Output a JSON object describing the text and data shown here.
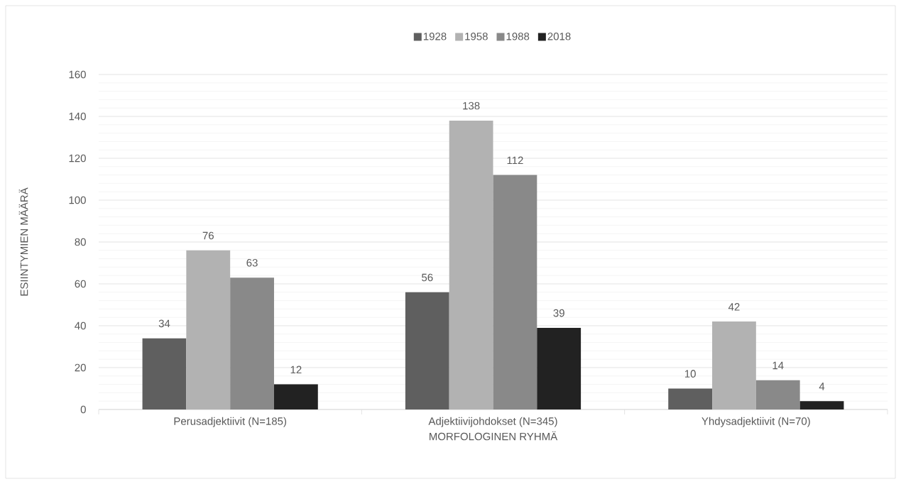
{
  "chart_data": {
    "type": "bar",
    "xlabel": "MORFOLOGINEN RYHMÄ",
    "ylabel": "ESIINTYMIEN MÄÄRÄ",
    "categories": [
      "Perusadjektiivit (N=185)",
      "Adjektiivijohdokset (N=345)",
      "Yhdysadjektiivit (N=70)"
    ],
    "series": [
      {
        "name": "1928",
        "color": "#5f5f5f",
        "values": [
          34,
          56,
          10
        ]
      },
      {
        "name": "1958",
        "color": "#b2b2b2",
        "values": [
          76,
          138,
          42
        ]
      },
      {
        "name": "1988",
        "color": "#898989",
        "values": [
          63,
          112,
          14
        ]
      },
      {
        "name": "2018",
        "color": "#222222",
        "values": [
          12,
          39,
          4
        ]
      }
    ],
    "ylim": [
      0,
      160
    ],
    "yticks": [
      0,
      {
        "value": 4,
        "label": null
      },
      {
        "value": 8,
        "label": null
      },
      {
        "value": 12,
        "label": null
      },
      {
        "value": 16,
        "label": null
      },
      20,
      {
        "value": 24,
        "label": null
      },
      {
        "value": 28,
        "label": null
      },
      {
        "value": 32,
        "label": null
      },
      {
        "value": 36,
        "label": null
      },
      40,
      {
        "value": 44,
        "label": null
      },
      {
        "value": 48,
        "label": null
      },
      {
        "value": 52,
        "label": null
      },
      {
        "value": 56,
        "label": null
      },
      60,
      {
        "value": 64,
        "label": null
      },
      {
        "value": 68,
        "label": null
      },
      {
        "value": 72,
        "label": null
      },
      {
        "value": 76,
        "label": null
      },
      80,
      {
        "value": 84,
        "label": null
      },
      {
        "value": 88,
        "label": null
      },
      {
        "value": 92,
        "label": null
      },
      {
        "value": 96,
        "label": null
      },
      100,
      {
        "value": 104,
        "label": null
      },
      {
        "value": 108,
        "label": null
      },
      {
        "value": 112,
        "label": null
      },
      {
        "value": 116,
        "label": null
      },
      120,
      {
        "value": 124,
        "label": null
      },
      {
        "value": 128,
        "label": null
      },
      {
        "value": 132,
        "label": null
      },
      {
        "value": 136,
        "label": null
      },
      140,
      {
        "value": 144,
        "label": null
      },
      {
        "value": 148,
        "label": null
      },
      {
        "value": 152,
        "label": null
      },
      {
        "value": 156,
        "label": null
      },
      160
    ],
    "grid": "y",
    "legend": "top",
    "data_labels": true
  }
}
